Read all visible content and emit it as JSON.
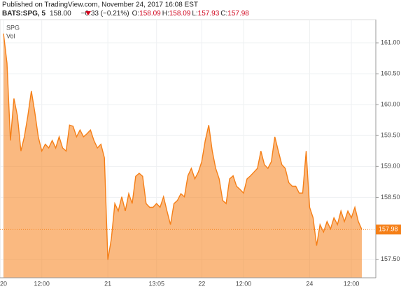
{
  "header": {
    "published": "Published on TradingView.com, November 24, 2017 16:08 EST",
    "symbol": "BATS:SPG, 5",
    "last": "158.00",
    "change": "−0.33 (−0.21%)",
    "ohlc": [
      {
        "label": "O:",
        "value": "158.09"
      },
      {
        "label": "H:",
        "value": "158.09"
      },
      {
        "label": "L:",
        "value": "157.93"
      },
      {
        "label": "C:",
        "value": "157.98"
      }
    ]
  },
  "chart_data": {
    "type": "area",
    "series_label": "SPG",
    "volume_label": "Vol",
    "x": [
      "20",
      null,
      null,
      null,
      null,
      null,
      null,
      null,
      null,
      null,
      null,
      "12:00",
      null,
      null,
      null,
      null,
      null,
      null,
      null,
      null,
      null,
      null,
      null,
      null,
      null,
      null,
      null,
      null,
      null,
      null,
      "21",
      null,
      null,
      null,
      null,
      null,
      null,
      null,
      null,
      null,
      null,
      null,
      null,
      null,
      "13:05",
      null,
      null,
      null,
      null,
      null,
      null,
      null,
      null,
      null,
      null,
      null,
      null,
      "22",
      null,
      null,
      null,
      null,
      null,
      null,
      null,
      null,
      null,
      null,
      null,
      "12:00",
      null,
      null,
      null,
      null,
      null,
      null,
      null,
      null,
      null,
      null,
      null,
      null,
      null,
      null,
      null,
      null,
      null,
      null,
      "24",
      null,
      null,
      null,
      null,
      null,
      null,
      null,
      null,
      null,
      null,
      null,
      "12:00",
      null,
      null,
      null
    ],
    "series": [
      {
        "name": "SPG",
        "color": "#f57f17",
        "values": [
          161.15,
          160.67,
          159.42,
          160.1,
          159.82,
          159.25,
          159.48,
          159.82,
          160.22,
          159.88,
          159.48,
          159.25,
          159.36,
          159.3,
          159.42,
          159.3,
          159.48,
          159.3,
          159.25,
          159.67,
          159.65,
          159.48,
          159.59,
          159.48,
          159.53,
          159.59,
          159.42,
          159.3,
          159.36,
          159.14,
          157.49,
          157.83,
          158.4,
          158.28,
          158.51,
          158.28,
          158.56,
          158.4,
          158.84,
          158.89,
          158.84,
          158.4,
          158.34,
          158.34,
          158.4,
          158.34,
          158.51,
          158.28,
          158.06,
          158.4,
          158.45,
          158.56,
          158.51,
          158.85,
          158.97,
          158.8,
          158.91,
          159.08,
          159.42,
          159.67,
          159.25,
          158.97,
          158.8,
          158.45,
          158.4,
          158.8,
          158.85,
          158.68,
          158.63,
          158.57,
          158.8,
          158.85,
          158.91,
          158.97,
          159.25,
          159.03,
          158.97,
          159.08,
          159.48,
          159.25,
          159.03,
          158.97,
          158.74,
          158.68,
          158.68,
          158.57,
          158.57,
          159.25,
          158.34,
          158.17,
          157.72,
          158.06,
          157.94,
          158.11,
          157.99,
          158.17,
          158.06,
          158.28,
          158.11,
          158.28,
          158.17,
          158.34,
          158.11,
          157.98
        ]
      }
    ],
    "ylim": [
      157.2,
      161.375
    ],
    "yticks": [
      {
        "value": 157.5,
        "label": "157.50"
      },
      {
        "value": 158.5,
        "label": "158.50"
      },
      {
        "value": 159,
        "label": "159.00"
      },
      {
        "value": 159.5,
        "label": "159.50"
      },
      {
        "value": 160,
        "label": "160.00"
      },
      {
        "value": 160.5,
        "label": "160.50"
      },
      {
        "value": 161,
        "label": "161.00"
      }
    ],
    "grid": true
  }
}
